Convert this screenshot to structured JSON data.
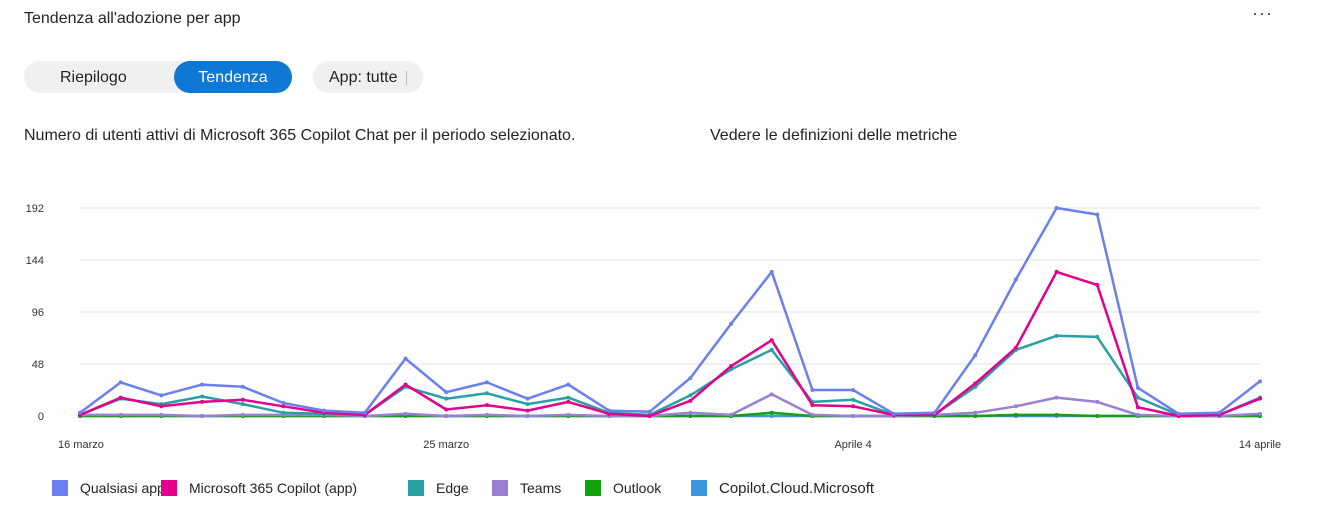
{
  "card": {
    "title": "Tendenza all'adozione per app",
    "more_label": "···"
  },
  "toggle": {
    "summary_label": "Riepilogo",
    "trend_label": "Tendenza"
  },
  "filter": {
    "app_label": "App: tutte"
  },
  "subtitle": "Numero di utenti attivi di Microsoft 365 Copilot Chat per il periodo selezionato.",
  "metrics_link": "Vedere le definizioni delle metriche",
  "colors": {
    "accent": "#0f78d4",
    "qualsiasi": "#6b7ff0",
    "copilot_app": "#e3008c",
    "edge": "#2aa0a4",
    "teams": "#9b7fd4",
    "outlook": "#13a10e",
    "cloud": "#3a96dd"
  },
  "chart_data": {
    "type": "line",
    "title": "",
    "xlabel": "",
    "ylabel": "",
    "ylim": [
      0,
      200
    ],
    "yticks": [
      0,
      48,
      96,
      144,
      192
    ],
    "x_tick_labels": [
      {
        "index": 0,
        "label": "16 marzo"
      },
      {
        "index": 9,
        "label": "25 marzo"
      },
      {
        "index": 19,
        "label": "Aprile 4"
      },
      {
        "index": 29,
        "label": "14 aprile"
      }
    ],
    "grid": true,
    "legend_position": "bottom",
    "x": [
      "16 mar",
      "17 mar",
      "18 mar",
      "19 mar",
      "20 mar",
      "21 mar",
      "22 mar",
      "23 mar",
      "24 mar",
      "25 mar",
      "26 mar",
      "27 mar",
      "28 mar",
      "29 mar",
      "30 mar",
      "31 mar",
      "1 apr",
      "2 apr",
      "3 apr",
      "4 apr",
      "5 apr",
      "6 apr",
      "7 apr",
      "8 apr",
      "9 apr",
      "10 apr",
      "11 apr",
      "12 apr",
      "13 apr",
      "14 apr"
    ],
    "series": [
      {
        "name": "Qualsiasi app",
        "color_key": "qualsiasi",
        "values": [
          3,
          31,
          19,
          29,
          27,
          12,
          5,
          3,
          53,
          22,
          31,
          16,
          29,
          5,
          4,
          35,
          85,
          133,
          24,
          24,
          2,
          3,
          56,
          126,
          192,
          186,
          26,
          2,
          3,
          32
        ]
      },
      {
        "name": "Microsoft 365 Copilot (app)",
        "color_key": "copilot_app",
        "values": [
          1,
          17,
          9,
          13,
          15,
          9,
          3,
          1,
          29,
          6,
          10,
          5,
          13,
          2,
          0,
          14,
          46,
          70,
          10,
          9,
          1,
          1,
          30,
          63,
          133,
          121,
          8,
          0,
          1,
          16
        ]
      },
      {
        "name": "Edge",
        "color_key": "edge",
        "values": [
          1,
          16,
          11,
          18,
          11,
          3,
          2,
          1,
          27,
          16,
          21,
          11,
          17,
          3,
          1,
          19,
          43,
          61,
          13,
          15,
          1,
          1,
          27,
          61,
          74,
          73,
          17,
          1,
          1,
          17
        ]
      },
      {
        "name": "Teams",
        "color_key": "teams",
        "values": [
          1,
          1,
          1,
          0,
          1,
          1,
          1,
          0,
          2,
          0,
          1,
          0,
          1,
          0,
          0,
          3,
          1,
          20,
          1,
          0,
          0,
          1,
          3,
          9,
          17,
          13,
          1,
          0,
          0,
          2
        ]
      },
      {
        "name": "Outlook",
        "color_key": "outlook",
        "values": [
          0,
          0,
          0,
          0,
          0,
          0,
          0,
          0,
          0,
          0,
          0,
          0,
          0,
          0,
          0,
          0,
          0,
          3,
          0,
          0,
          0,
          0,
          0,
          1,
          1,
          0,
          0,
          0,
          0,
          0
        ]
      },
      {
        "name": "Copilot.Cloud.Microsoft",
        "color_key": "cloud",
        "values": [
          0,
          0,
          0,
          0,
          0,
          0,
          0,
          0,
          0,
          0,
          0,
          0,
          0,
          0,
          0,
          0,
          0,
          0,
          0,
          0,
          0,
          0,
          0,
          0,
          0,
          0,
          0,
          0,
          0,
          0
        ]
      }
    ]
  }
}
